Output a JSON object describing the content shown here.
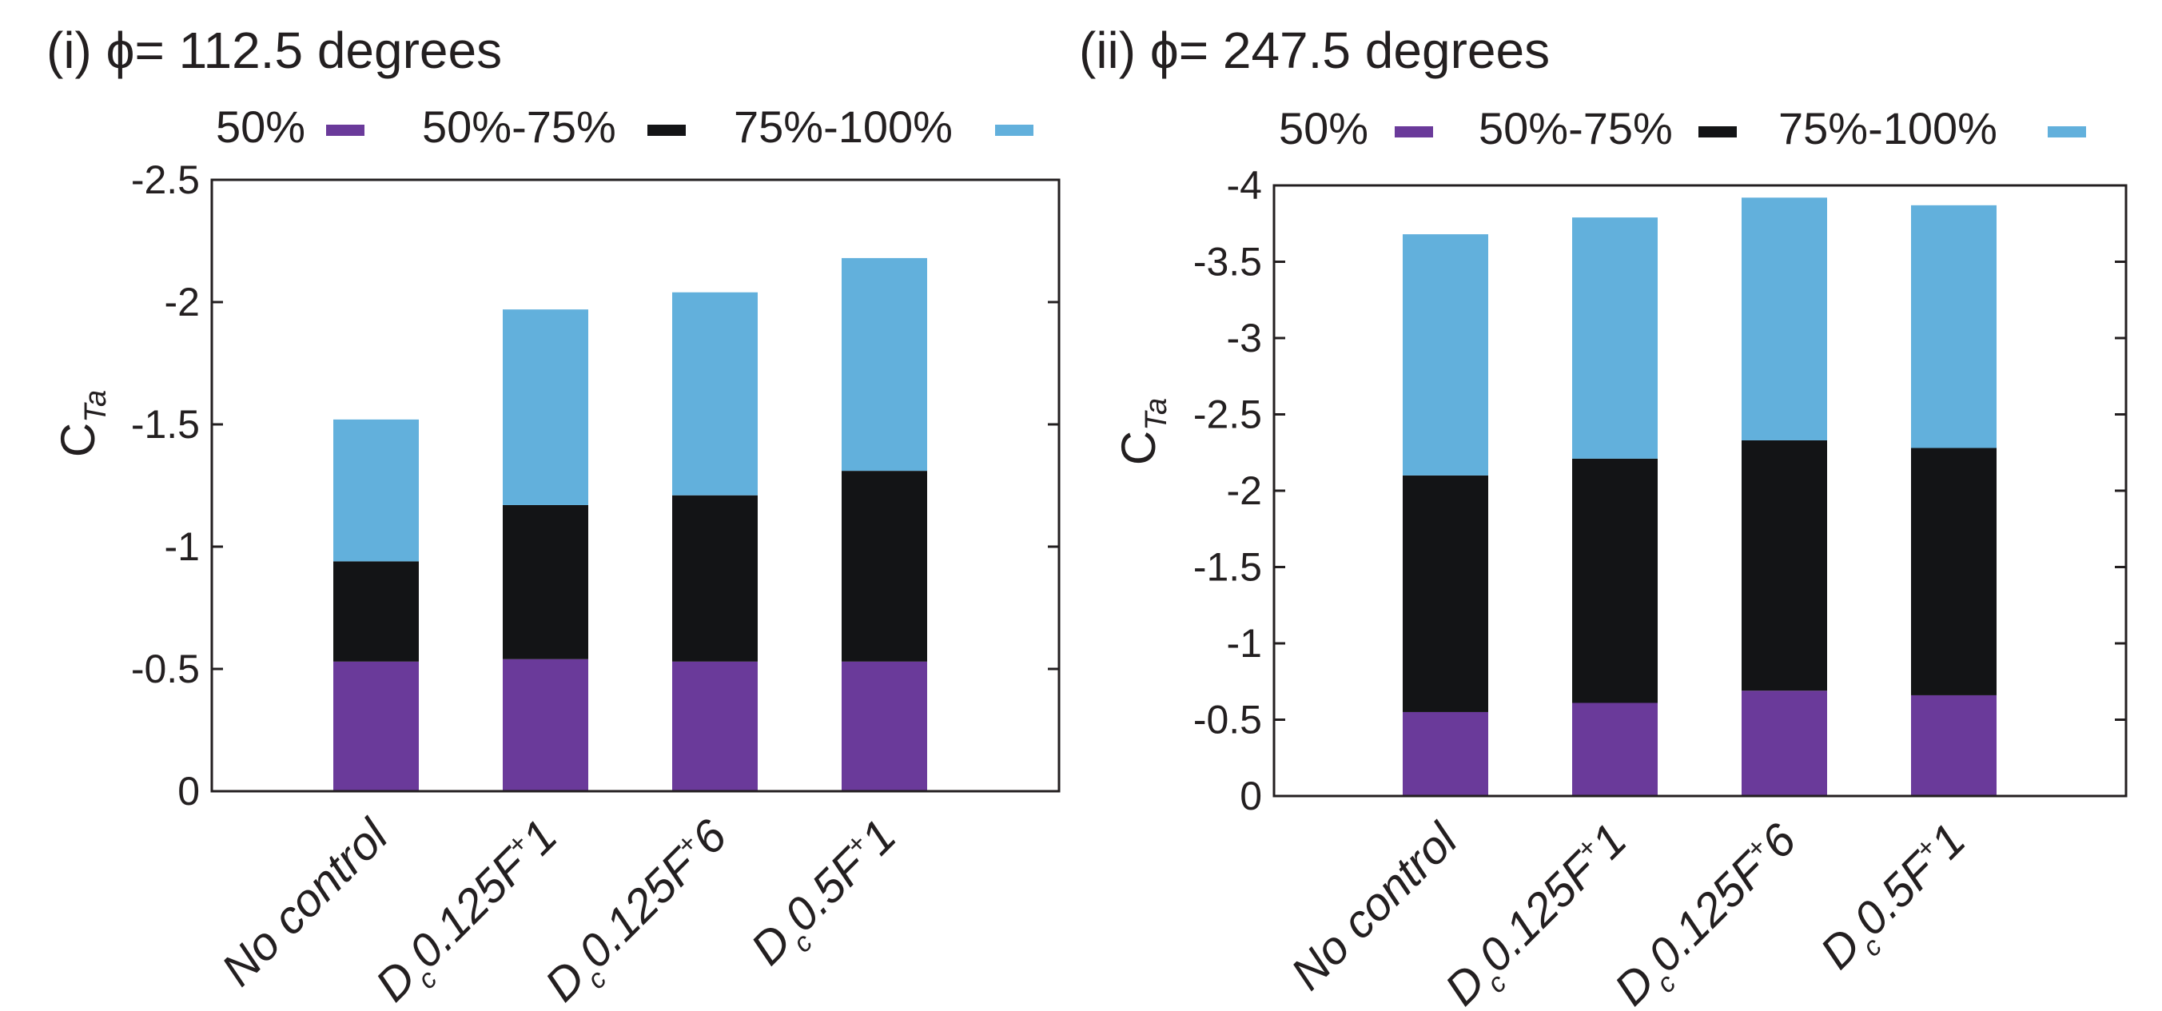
{
  "chart_data": [
    {
      "type": "bar",
      "stacked": true,
      "title": "(i) ϕ= 112.5 degrees",
      "ylabel": "C",
      "ylabel_subscript": "Ta",
      "ylim": [
        0,
        -2.5
      ],
      "yticks": [
        "-2.5",
        "-2",
        "-1.5",
        "-1",
        "-0.5",
        "0"
      ],
      "ytick_values": [
        -2.5,
        -2,
        -1.5,
        -1,
        -0.5,
        0
      ],
      "legend": [
        "50%",
        "50%-75%",
        "75%-100%"
      ],
      "legend_position": "top",
      "categories": [
        {
          "label": "No control",
          "main": "No control",
          "sub": "",
          "rest": "",
          "sup": "",
          "tail": ""
        },
        {
          "label": "D c 0.125F+1",
          "main": "D",
          "sub": "c",
          "rest": "0.125F",
          "sup": "+",
          "tail": "1"
        },
        {
          "label": "D c 0.125F+6",
          "main": "D",
          "sub": "c",
          "rest": "0.125F",
          "sup": "+",
          "tail": "6"
        },
        {
          "label": "D c 0.5F+1",
          "main": "D",
          "sub": "c",
          "rest": "0.5F",
          "sup": "+",
          "tail": "1"
        }
      ],
      "series": [
        {
          "name": "50%",
          "color": "#6a3a9a",
          "values": [
            -0.53,
            -0.54,
            -0.53,
            -0.53
          ]
        },
        {
          "name": "50%-75%",
          "color": "#131416",
          "values": [
            -0.41,
            -0.63,
            -0.68,
            -0.78
          ]
        },
        {
          "name": "75%-100%",
          "color": "#62b0dc",
          "values": [
            -0.58,
            -0.8,
            -0.83,
            -0.87
          ]
        }
      ]
    },
    {
      "type": "bar",
      "stacked": true,
      "title": "(ii) ϕ= 247.5 degrees",
      "ylabel": "C",
      "ylabel_subscript": "Ta",
      "ylim": [
        0,
        -4
      ],
      "yticks": [
        "-4",
        "-3.5",
        "-3",
        "-2.5",
        "-2",
        "-1.5",
        "-1",
        "-0.5",
        "0"
      ],
      "ytick_values": [
        -4,
        -3.5,
        -3,
        -2.5,
        -2,
        -1.5,
        -1,
        -0.5,
        0
      ],
      "legend": [
        "50%",
        "50%-75%",
        "75%-100%"
      ],
      "legend_position": "top",
      "categories": [
        {
          "label": "No control",
          "main": "No control",
          "sub": "",
          "rest": "",
          "sup": "",
          "tail": ""
        },
        {
          "label": "D c 0.125F+1",
          "main": "D",
          "sub": "c",
          "rest": "0.125F",
          "sup": "+",
          "tail": "1"
        },
        {
          "label": "D c 0.125F+6",
          "main": "D",
          "sub": "c",
          "rest": "0.125F",
          "sup": "+",
          "tail": "6"
        },
        {
          "label": "D c 0.5F+1",
          "main": "D",
          "sub": "c",
          "rest": "0.5F",
          "sup": "+",
          "tail": "1"
        }
      ],
      "series": [
        {
          "name": "50%",
          "color": "#6a3a9a",
          "values": [
            -0.55,
            -0.61,
            -0.69,
            -0.66
          ]
        },
        {
          "name": "50%-75%",
          "color": "#131416",
          "values": [
            -1.55,
            -1.6,
            -1.64,
            -1.62
          ]
        },
        {
          "name": "75%-100%",
          "color": "#62b0dc",
          "values": [
            -1.58,
            -1.58,
            -1.59,
            -1.59
          ]
        }
      ]
    }
  ]
}
